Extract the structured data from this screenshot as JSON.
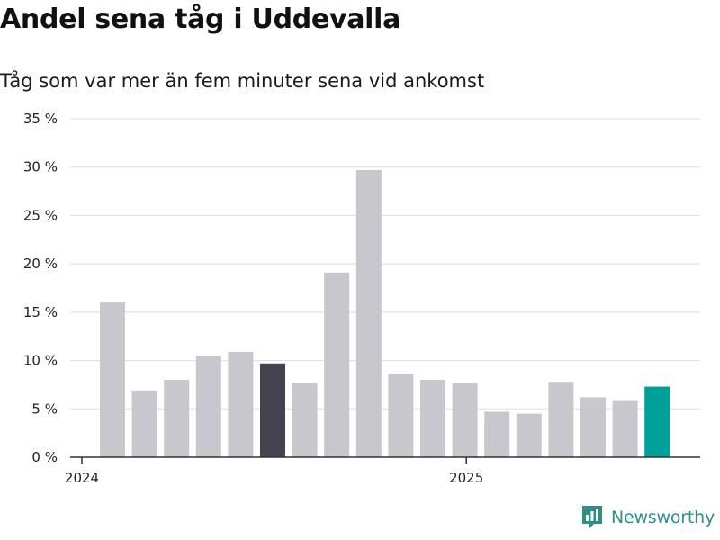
{
  "title": "Andel sena tåg i Uddevalla",
  "subtitle": "Tåg som var mer än fem minuter sena vid ankomst",
  "brand": {
    "name": "Newsworthy",
    "icon": "newsworthy-logo-icon"
  },
  "colors": {
    "default_bar": "#c8c7cd",
    "highlight_dark": "#43424e",
    "highlight_accent": "#00a09a",
    "grid": "#dddddd",
    "axis": "#333333",
    "brand": "#2f8f88"
  },
  "chart_data": {
    "type": "bar",
    "title": "Andel sena tåg i Uddevalla",
    "subtitle": "Tåg som var mer än fem minuter sena vid ankomst",
    "unit": "%",
    "categories": [
      "2024-01",
      "2024-02",
      "2024-03",
      "2024-04",
      "2024-05",
      "2024-06",
      "2024-07",
      "2024-08",
      "2024-09",
      "2024-10",
      "2024-11",
      "2024-12",
      "2025-01",
      "2025-02",
      "2025-03",
      "2025-04",
      "2025-05",
      "2025-06"
    ],
    "values": [
      16.0,
      6.9,
      8.0,
      10.5,
      10.9,
      9.7,
      7.7,
      19.1,
      29.7,
      8.6,
      8.0,
      7.7,
      4.7,
      4.5,
      7.8,
      6.2,
      5.9,
      7.3
    ],
    "highlights": {
      "5": "highlight_dark",
      "17": "highlight_accent"
    },
    "ylim": [
      0,
      35
    ],
    "yticks": [
      0,
      5,
      10,
      15,
      20,
      25,
      30,
      35
    ],
    "ytick_labels": [
      "0 %",
      "5 %",
      "10 %",
      "15 %",
      "20 %",
      "25 %",
      "30 %",
      "35 %"
    ],
    "xticks": [
      {
        "index": 0,
        "label": "2024"
      },
      {
        "index": 12,
        "label": "2025"
      }
    ],
    "grid": true,
    "legend": "none"
  }
}
